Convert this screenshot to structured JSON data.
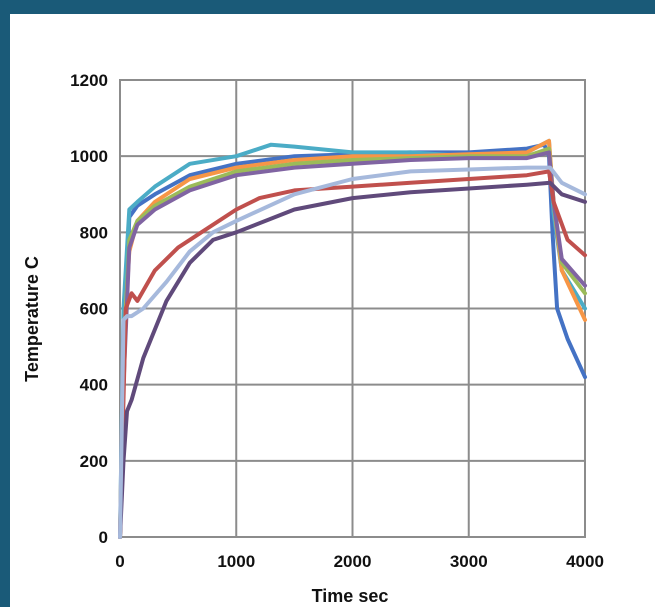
{
  "chart_data": {
    "type": "line",
    "title": "",
    "xlabel": "Time sec",
    "ylabel": "Temperature C",
    "xlim": [
      0,
      4000
    ],
    "ylim": [
      0,
      1200
    ],
    "xticks": [
      0,
      1000,
      2000,
      3000,
      4000
    ],
    "yticks": [
      0,
      200,
      400,
      600,
      800,
      1000,
      1200
    ],
    "grid": true,
    "legend": "none",
    "series": [
      {
        "color": "#4472c4",
        "x": [
          0,
          30,
          80,
          150,
          300,
          600,
          1000,
          1500,
          2000,
          2500,
          3000,
          3500,
          3650,
          3690,
          3720,
          3760,
          3850,
          4000
        ],
        "y": [
          0,
          450,
          840,
          870,
          900,
          950,
          980,
          1000,
          1005,
          1010,
          1010,
          1020,
          1030,
          1000,
          800,
          600,
          520,
          420
        ]
      },
      {
        "color": "#4bacc6",
        "x": [
          0,
          30,
          80,
          150,
          300,
          600,
          1000,
          1300,
          1500,
          2000,
          2500,
          3000,
          3500,
          3690,
          3730,
          3800,
          4000
        ],
        "y": [
          0,
          600,
          860,
          880,
          920,
          980,
          1000,
          1030,
          1025,
          1010,
          1010,
          1000,
          1010,
          1040,
          850,
          700,
          600
        ]
      },
      {
        "color": "#f79646",
        "x": [
          0,
          30,
          80,
          150,
          300,
          600,
          1000,
          1500,
          2000,
          2500,
          3000,
          3500,
          3690,
          3730,
          3800,
          4000
        ],
        "y": [
          0,
          500,
          750,
          830,
          880,
          940,
          970,
          990,
          1000,
          1000,
          1005,
          1010,
          1040,
          880,
          700,
          570
        ]
      },
      {
        "color": "#9bbb59",
        "x": [
          0,
          30,
          80,
          150,
          300,
          600,
          1000,
          1500,
          2000,
          2500,
          3000,
          3500,
          3690,
          3730,
          3800,
          4000
        ],
        "y": [
          0,
          450,
          780,
          830,
          870,
          920,
          960,
          980,
          990,
          995,
          1000,
          1000,
          1020,
          880,
          720,
          640
        ]
      },
      {
        "color": "#8064a2",
        "x": [
          0,
          30,
          80,
          150,
          300,
          600,
          1000,
          1500,
          2000,
          2500,
          3000,
          3500,
          3690,
          3730,
          3800,
          4000
        ],
        "y": [
          0,
          400,
          760,
          820,
          860,
          910,
          950,
          970,
          980,
          990,
          995,
          995,
          1010,
          880,
          730,
          660
        ]
      },
      {
        "color": "#c0504d",
        "x": [
          0,
          50,
          100,
          150,
          300,
          500,
          700,
          1000,
          1200,
          1500,
          2000,
          2500,
          3000,
          3500,
          3690,
          3730,
          3850,
          4000
        ],
        "y": [
          0,
          600,
          640,
          620,
          700,
          760,
          800,
          860,
          890,
          910,
          920,
          930,
          940,
          950,
          960,
          880,
          780,
          740
        ]
      },
      {
        "color": "#604a7b",
        "x": [
          0,
          30,
          60,
          100,
          200,
          400,
          600,
          800,
          1000,
          1500,
          2000,
          2500,
          3000,
          3500,
          3700,
          3800,
          4000
        ],
        "y": [
          0,
          200,
          330,
          360,
          470,
          620,
          720,
          780,
          800,
          860,
          890,
          905,
          915,
          925,
          930,
          900,
          880
        ]
      },
      {
        "color": "#a6b9dc",
        "x": [
          0,
          30,
          60,
          100,
          200,
          400,
          600,
          800,
          1000,
          1500,
          2000,
          2500,
          3000,
          3500,
          3700,
          3800,
          4000
        ],
        "y": [
          0,
          570,
          580,
          580,
          600,
          670,
          750,
          800,
          830,
          900,
          940,
          960,
          965,
          970,
          970,
          930,
          900
        ]
      }
    ]
  }
}
